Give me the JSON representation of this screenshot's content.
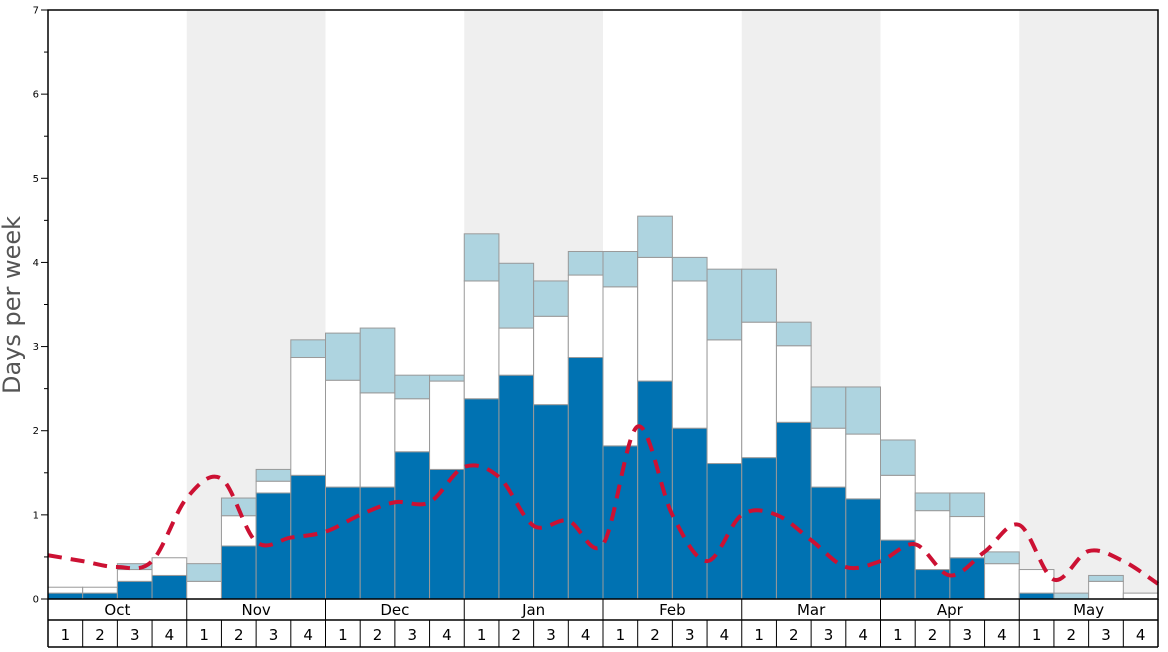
{
  "chart_data": {
    "type": "bar",
    "ylabel": "Days per week",
    "ylim": [
      0,
      7
    ],
    "yticks": [
      0,
      1,
      2,
      3,
      4,
      5,
      6,
      7
    ],
    "months": [
      "Oct",
      "Nov",
      "Dec",
      "Jan",
      "Feb",
      "Mar",
      "Apr",
      "May"
    ],
    "weeks": [
      "1",
      "2",
      "3",
      "4"
    ],
    "stacked": true,
    "series": [
      {
        "color": "#0072b2",
        "values": [
          0.07,
          0.07,
          0.21,
          0.28,
          0,
          0.63,
          1.26,
          1.47,
          1.33,
          1.33,
          1.75,
          1.54,
          2.38,
          2.66,
          2.31,
          2.87,
          1.82,
          2.59,
          2.03,
          1.61,
          1.68,
          2.1,
          1.33,
          1.19,
          0.7,
          0.35,
          0.49,
          0,
          0.07,
          0,
          0,
          0
        ]
      },
      {
        "color": "#ffffff",
        "values": [
          0.07,
          0.07,
          0.14,
          0.21,
          0.21,
          0.36,
          0.14,
          1.4,
          1.27,
          1.12,
          0.63,
          1.05,
          1.4,
          0.56,
          1.05,
          0.98,
          1.89,
          1.47,
          1.75,
          1.47,
          1.61,
          0.91,
          0.7,
          0.77,
          0.77,
          0.7,
          0.49,
          0.42,
          0.28,
          0,
          0.21,
          0.07
        ]
      },
      {
        "color": "#aed4e0",
        "values": [
          0,
          0,
          0.07,
          0,
          0.21,
          0.21,
          0.14,
          0.21,
          0.56,
          0.77,
          0.28,
          0.07,
          0.56,
          0.77,
          0.42,
          0.28,
          0.42,
          0.49,
          0.28,
          0.84,
          0.63,
          0.28,
          0.49,
          0.56,
          0.42,
          0.21,
          0.28,
          0.14,
          0,
          0.07,
          0.07,
          0
        ]
      }
    ],
    "trend": {
      "color": "#cc1133",
      "dashed": true,
      "values": [
        0.52,
        0.45,
        0.38,
        0.45,
        1.2,
        1.43,
        0.68,
        0.73,
        0.8,
        1.0,
        1.15,
        1.15,
        1.57,
        1.45,
        0.87,
        0.93,
        0.65,
        2.05,
        1.0,
        0.45,
        1.0,
        1.0,
        0.7,
        0.38,
        0.45,
        0.65,
        0.28,
        0.56,
        0.88,
        0.23,
        0.57,
        0.45,
        0.18
      ]
    },
    "band_colors": [
      "#ffffff",
      "#efefef"
    ],
    "grid": false
  }
}
